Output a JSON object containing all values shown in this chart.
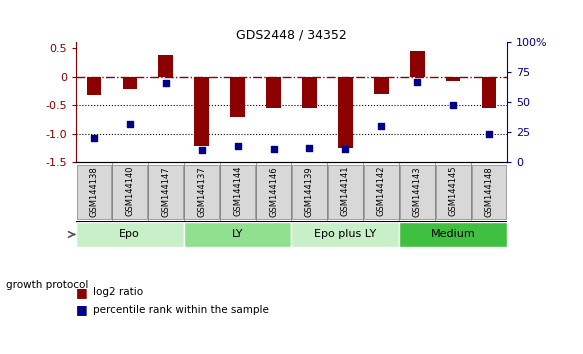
{
  "title": "GDS2448 / 34352",
  "samples": [
    "GSM144138",
    "GSM144140",
    "GSM144147",
    "GSM144137",
    "GSM144144",
    "GSM144146",
    "GSM144139",
    "GSM144141",
    "GSM144142",
    "GSM144143",
    "GSM144145",
    "GSM144148"
  ],
  "log2_ratio": [
    -0.32,
    -0.22,
    0.38,
    -1.22,
    -0.7,
    -0.55,
    -0.55,
    -1.25,
    -0.3,
    0.45,
    -0.07,
    -0.55
  ],
  "percentile_rank": [
    20,
    32,
    66,
    10,
    14,
    11,
    12,
    11,
    30,
    67,
    48,
    24
  ],
  "bar_color": "#8B0000",
  "dot_color": "#00008B",
  "groups": [
    {
      "label": "Epo",
      "start": 0,
      "end": 3,
      "color": "#c8f0c8"
    },
    {
      "label": "LY",
      "start": 3,
      "end": 6,
      "color": "#90e090"
    },
    {
      "label": "Epo plus LY",
      "start": 6,
      "end": 9,
      "color": "#c8f0c8"
    },
    {
      "label": "Medium",
      "start": 9,
      "end": 12,
      "color": "#40c040"
    }
  ],
  "ylim_left": [
    -1.5,
    0.6
  ],
  "ylim_right": [
    0,
    100
  ],
  "yticks_left": [
    -1.5,
    -1.0,
    -0.5,
    0.0,
    0.5
  ],
  "yticks_right": [
    0,
    25,
    50,
    75,
    100
  ],
  "hline_dashed": 0.0,
  "hlines_dotted": [
    -0.5,
    -1.0
  ],
  "bar_width": 0.4,
  "background_color": "#ffffff",
  "group_label": "growth protocol"
}
